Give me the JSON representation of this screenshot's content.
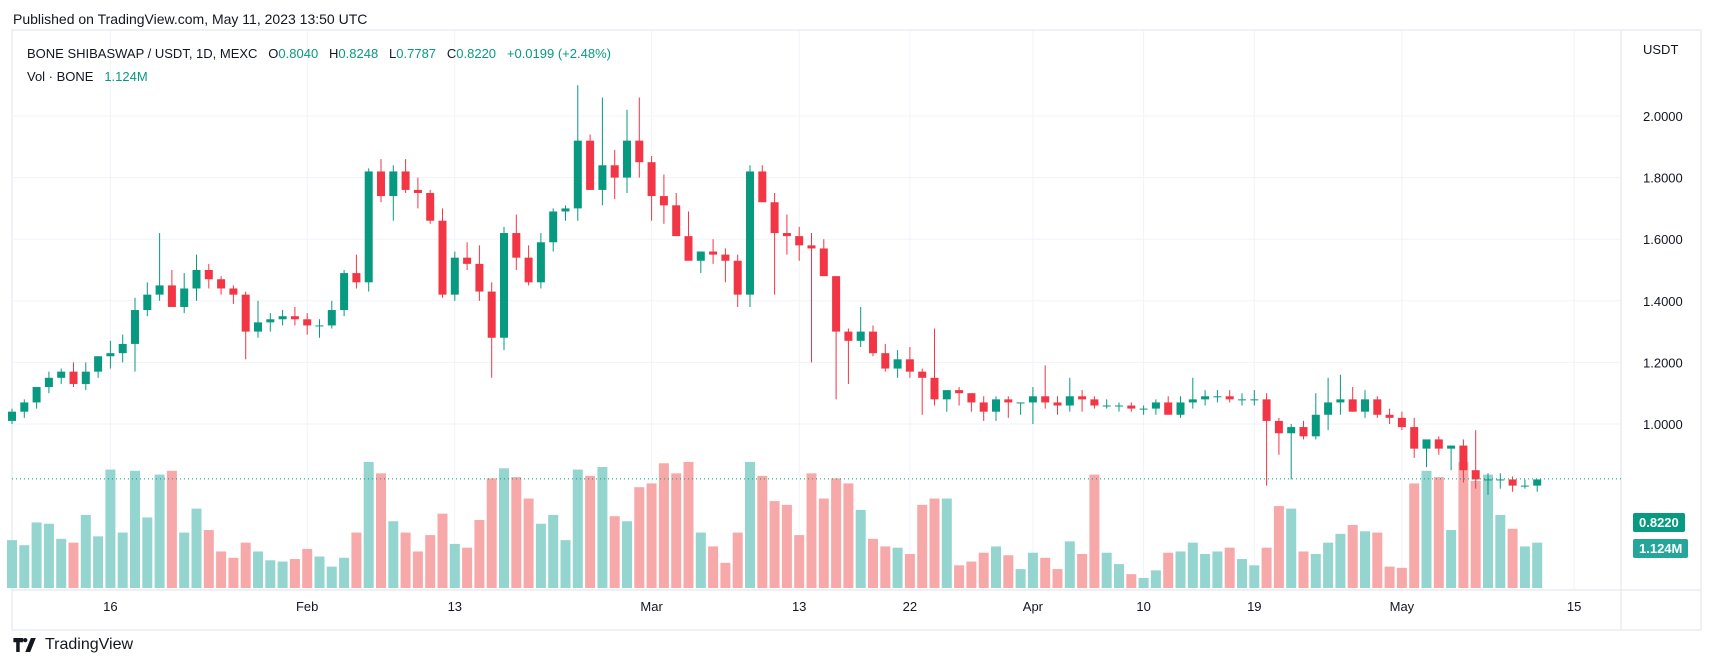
{
  "header": {
    "published": "Published on TradingView.com, May 11, 2023 13:50 UTC"
  },
  "legend": {
    "symbol": "BONE SHIBASWAP / USDT, 1D, MEXC",
    "o_label": "O",
    "o_value": "0.8040",
    "h_label": "H",
    "h_value": "0.8248",
    "l_label": "L",
    "l_value": "0.7787",
    "c_label": "C",
    "c_value": "0.8220",
    "change": "+0.0199 (+2.48%)",
    "vol_label": "Vol · BONE",
    "vol_value": "1.124M"
  },
  "axis": {
    "currency": "USDT"
  },
  "badges": {
    "price": "0.8220",
    "volume": "1.124M"
  },
  "footer": {
    "brand": "TradingView"
  },
  "colors": {
    "up": "#089981",
    "down": "#f23645",
    "up_volume": "#95d5cf",
    "down_volume": "#f7a9a9"
  },
  "chart_data": {
    "type": "candlestick",
    "y_ticks": [
      "2.0000",
      "1.8000",
      "1.6000",
      "1.4000",
      "1.2000",
      "1.0000"
    ],
    "y_tick_values": [
      2.0,
      1.8,
      1.6,
      1.4,
      1.2,
      1.0
    ],
    "ylim": [
      0.75,
      2.25
    ],
    "x_ticks": [
      {
        "label": "16",
        "index": 8
      },
      {
        "label": "Feb",
        "index": 24
      },
      {
        "label": "13",
        "index": 36
      },
      {
        "label": "Mar",
        "index": 52
      },
      {
        "label": "13",
        "index": 64
      },
      {
        "label": "22",
        "index": 73
      },
      {
        "label": "Apr",
        "index": 83
      },
      {
        "label": "10",
        "index": 92
      },
      {
        "label": "19",
        "index": 101
      },
      {
        "label": "May",
        "index": 113
      },
      {
        "label": "15",
        "index": 127
      }
    ],
    "last_price": 0.822,
    "ohlcv": [
      [
        1.01,
        1.05,
        1.0,
        1.04,
        0.38
      ],
      [
        1.04,
        1.08,
        1.02,
        1.07,
        0.34
      ],
      [
        1.07,
        1.12,
        1.05,
        1.12,
        0.52
      ],
      [
        1.12,
        1.17,
        1.1,
        1.15,
        0.51
      ],
      [
        1.15,
        1.18,
        1.13,
        1.17,
        0.39
      ],
      [
        1.17,
        1.2,
        1.12,
        1.13,
        0.36
      ],
      [
        1.13,
        1.2,
        1.11,
        1.17,
        0.58
      ],
      [
        1.17,
        1.22,
        1.15,
        1.22,
        0.41
      ],
      [
        1.22,
        1.27,
        1.18,
        1.23,
        0.94
      ],
      [
        1.23,
        1.29,
        1.2,
        1.26,
        0.44
      ],
      [
        1.26,
        1.41,
        1.17,
        1.37,
        0.93
      ],
      [
        1.37,
        1.46,
        1.35,
        1.42,
        0.56
      ],
      [
        1.42,
        1.62,
        1.4,
        1.45,
        0.9
      ],
      [
        1.45,
        1.5,
        1.38,
        1.38,
        0.93
      ],
      [
        1.38,
        1.49,
        1.36,
        1.44,
        0.44
      ],
      [
        1.44,
        1.55,
        1.4,
        1.5,
        0.63
      ],
      [
        1.5,
        1.52,
        1.44,
        1.47,
        0.46
      ],
      [
        1.47,
        1.48,
        1.42,
        1.44,
        0.29
      ],
      [
        1.44,
        1.45,
        1.39,
        1.42,
        0.24
      ],
      [
        1.42,
        1.43,
        1.21,
        1.3,
        0.36
      ],
      [
        1.3,
        1.4,
        1.28,
        1.33,
        0.29
      ],
      [
        1.33,
        1.36,
        1.3,
        1.34,
        0.22
      ],
      [
        1.34,
        1.37,
        1.32,
        1.35,
        0.21
      ],
      [
        1.35,
        1.38,
        1.32,
        1.34,
        0.23
      ],
      [
        1.34,
        1.36,
        1.29,
        1.32,
        0.31
      ],
      [
        1.32,
        1.34,
        1.28,
        1.32,
        0.25
      ],
      [
        1.32,
        1.4,
        1.31,
        1.37,
        0.17
      ],
      [
        1.37,
        1.5,
        1.35,
        1.49,
        0.24
      ],
      [
        1.49,
        1.55,
        1.44,
        1.46,
        0.44
      ],
      [
        1.46,
        1.83,
        1.43,
        1.82,
        1.0
      ],
      [
        1.82,
        1.86,
        1.72,
        1.74,
        0.91
      ],
      [
        1.74,
        1.84,
        1.66,
        1.82,
        0.53
      ],
      [
        1.82,
        1.86,
        1.75,
        1.76,
        0.44
      ],
      [
        1.76,
        1.8,
        1.7,
        1.75,
        0.29
      ],
      [
        1.75,
        1.76,
        1.65,
        1.66,
        0.42
      ],
      [
        1.66,
        1.7,
        1.41,
        1.42,
        0.59
      ],
      [
        1.42,
        1.56,
        1.4,
        1.54,
        0.35
      ],
      [
        1.54,
        1.59,
        1.5,
        1.52,
        0.32
      ],
      [
        1.52,
        1.58,
        1.4,
        1.43,
        0.54
      ],
      [
        1.43,
        1.46,
        1.15,
        1.28,
        0.87
      ],
      [
        1.28,
        1.64,
        1.24,
        1.62,
        0.95
      ],
      [
        1.62,
        1.68,
        1.5,
        1.54,
        0.88
      ],
      [
        1.54,
        1.58,
        1.45,
        1.46,
        0.71
      ],
      [
        1.46,
        1.62,
        1.44,
        1.59,
        0.51
      ],
      [
        1.59,
        1.7,
        1.56,
        1.69,
        0.58
      ],
      [
        1.69,
        1.71,
        1.66,
        1.7,
        0.38
      ],
      [
        1.7,
        2.1,
        1.66,
        1.92,
        0.94
      ],
      [
        1.92,
        1.94,
        1.76,
        1.76,
        0.89
      ],
      [
        1.76,
        2.06,
        1.71,
        1.84,
        0.96
      ],
      [
        1.84,
        1.89,
        1.73,
        1.8,
        0.57
      ],
      [
        1.8,
        2.02,
        1.75,
        1.92,
        0.53
      ],
      [
        1.92,
        2.06,
        1.8,
        1.85,
        0.8
      ],
      [
        1.85,
        1.87,
        1.66,
        1.74,
        0.83
      ],
      [
        1.74,
        1.81,
        1.65,
        1.71,
        0.99
      ],
      [
        1.71,
        1.75,
        1.62,
        1.61,
        0.91
      ],
      [
        1.61,
        1.69,
        1.55,
        1.53,
        1.0
      ],
      [
        1.53,
        1.56,
        1.49,
        1.56,
        0.44
      ],
      [
        1.56,
        1.6,
        1.52,
        1.55,
        0.33
      ],
      [
        1.55,
        1.57,
        1.46,
        1.53,
        0.2
      ],
      [
        1.53,
        1.55,
        1.38,
        1.42,
        0.44
      ],
      [
        1.42,
        1.84,
        1.38,
        1.82,
        1.0
      ],
      [
        1.82,
        1.84,
        1.75,
        1.72,
        0.89
      ],
      [
        1.72,
        1.75,
        1.42,
        1.62,
        0.69
      ],
      [
        1.62,
        1.68,
        1.55,
        1.61,
        0.66
      ],
      [
        1.61,
        1.64,
        1.53,
        1.58,
        0.42
      ],
      [
        1.58,
        1.62,
        1.2,
        1.57,
        0.91
      ],
      [
        1.57,
        1.6,
        1.48,
        1.48,
        0.71
      ],
      [
        1.48,
        1.48,
        1.08,
        1.3,
        0.87
      ],
      [
        1.3,
        1.31,
        1.13,
        1.27,
        0.83
      ],
      [
        1.27,
        1.38,
        1.25,
        1.3,
        0.62
      ],
      [
        1.3,
        1.32,
        1.22,
        1.23,
        0.39
      ],
      [
        1.23,
        1.26,
        1.17,
        1.18,
        0.33
      ],
      [
        1.18,
        1.24,
        1.15,
        1.21,
        0.32
      ],
      [
        1.21,
        1.25,
        1.15,
        1.17,
        0.27
      ],
      [
        1.17,
        1.18,
        1.03,
        1.15,
        0.66
      ],
      [
        1.15,
        1.31,
        1.06,
        1.08,
        0.71
      ],
      [
        1.08,
        1.11,
        1.04,
        1.11,
        0.71
      ],
      [
        1.11,
        1.12,
        1.06,
        1.1,
        0.18
      ],
      [
        1.1,
        1.1,
        1.04,
        1.07,
        0.21
      ],
      [
        1.07,
        1.09,
        1.01,
        1.04,
        0.28
      ],
      [
        1.04,
        1.09,
        1.01,
        1.08,
        0.33
      ],
      [
        1.08,
        1.09,
        1.02,
        1.07,
        0.26
      ],
      [
        1.07,
        1.07,
        1.03,
        1.07,
        0.15
      ],
      [
        1.07,
        1.12,
        1.0,
        1.09,
        0.28
      ],
      [
        1.09,
        1.19,
        1.05,
        1.07,
        0.24
      ],
      [
        1.07,
        1.09,
        1.03,
        1.06,
        0.15
      ],
      [
        1.06,
        1.15,
        1.04,
        1.09,
        0.37
      ],
      [
        1.09,
        1.11,
        1.04,
        1.08,
        0.27
      ],
      [
        1.08,
        1.09,
        1.05,
        1.06,
        0.9
      ],
      [
        1.06,
        1.08,
        1.05,
        1.06,
        0.28
      ],
      [
        1.06,
        1.07,
        1.04,
        1.06,
        0.19
      ],
      [
        1.06,
        1.07,
        1.04,
        1.05,
        0.11
      ],
      [
        1.05,
        1.06,
        1.03,
        1.05,
        0.08
      ],
      [
        1.05,
        1.08,
        1.03,
        1.07,
        0.14
      ],
      [
        1.07,
        1.09,
        1.04,
        1.03,
        0.28
      ],
      [
        1.03,
        1.09,
        1.02,
        1.07,
        0.29
      ],
      [
        1.07,
        1.15,
        1.05,
        1.08,
        0.36
      ],
      [
        1.08,
        1.11,
        1.06,
        1.09,
        0.27
      ],
      [
        1.09,
        1.11,
        1.07,
        1.09,
        0.29
      ],
      [
        1.09,
        1.11,
        1.07,
        1.08,
        0.32
      ],
      [
        1.08,
        1.1,
        1.06,
        1.08,
        0.23
      ],
      [
        1.08,
        1.11,
        1.06,
        1.08,
        0.18
      ],
      [
        1.08,
        1.1,
        0.8,
        1.01,
        0.32
      ],
      [
        1.01,
        1.02,
        0.9,
        0.97,
        0.65
      ],
      [
        0.97,
        1.0,
        0.82,
        0.99,
        0.63
      ],
      [
        0.99,
        1.01,
        0.95,
        0.96,
        0.29
      ],
      [
        0.96,
        1.1,
        0.95,
        1.03,
        0.27
      ],
      [
        1.03,
        1.15,
        0.98,
        1.07,
        0.36
      ],
      [
        1.07,
        1.16,
        1.03,
        1.08,
        0.43
      ],
      [
        1.08,
        1.12,
        1.04,
        1.04,
        0.5
      ],
      [
        1.04,
        1.11,
        1.02,
        1.08,
        0.45
      ],
      [
        1.08,
        1.09,
        1.02,
        1.03,
        0.44
      ],
      [
        1.03,
        1.05,
        1.0,
        1.02,
        0.17
      ],
      [
        1.02,
        1.04,
        0.98,
        0.99,
        0.16
      ],
      [
        0.99,
        1.02,
        0.89,
        0.92,
        0.83
      ],
      [
        0.92,
        0.94,
        0.86,
        0.95,
        0.93
      ],
      [
        0.95,
        0.96,
        0.9,
        0.92,
        0.88
      ],
      [
        0.92,
        0.93,
        0.85,
        0.93,
        0.46
      ],
      [
        0.93,
        0.95,
        0.81,
        0.85,
        1.0
      ],
      [
        0.85,
        0.98,
        0.79,
        0.82,
        0.85
      ],
      [
        0.82,
        0.84,
        0.77,
        0.82,
        0.9
      ],
      [
        0.82,
        0.84,
        0.79,
        0.82,
        0.58
      ],
      [
        0.82,
        0.83,
        0.78,
        0.8,
        0.47
      ],
      [
        0.8,
        0.82,
        0.79,
        0.8,
        0.33
      ],
      [
        0.8,
        0.82,
        0.78,
        0.82,
        0.36
      ]
    ]
  }
}
